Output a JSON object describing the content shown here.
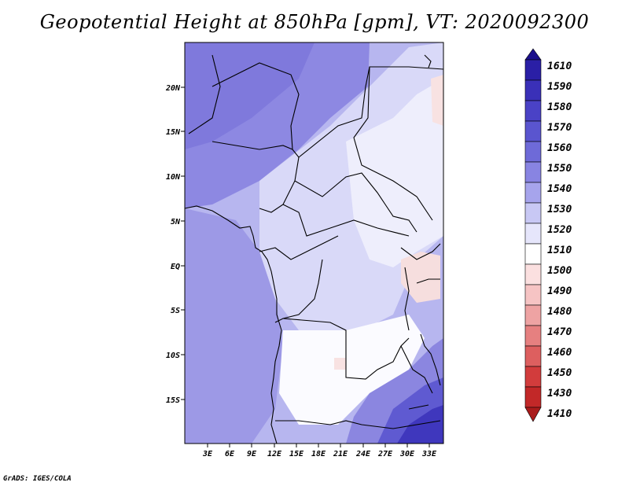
{
  "title": "Geopotential Height at 850hPa [gpm], VT: 2020092300",
  "credit": "GrADS: IGES/COLA",
  "lat_labels": [
    "20N",
    "15N",
    "10N",
    "5N",
    "EQ",
    "5S",
    "10S",
    "15S"
  ],
  "lon_labels": [
    "3E",
    "6E",
    "9E",
    "12E",
    "15E",
    "18E",
    "21E",
    "24E",
    "27E",
    "30E",
    "33E"
  ],
  "colorbar": {
    "labels": [
      "1610",
      "1590",
      "1580",
      "1570",
      "1560",
      "1550",
      "1540",
      "1530",
      "1520",
      "1510",
      "1500",
      "1490",
      "1480",
      "1470",
      "1460",
      "1450",
      "1430",
      "1410"
    ],
    "colors": [
      "#1b0f8c",
      "#2a1fa6",
      "#3a30b8",
      "#4a42c6",
      "#5a55cf",
      "#6e6ad8",
      "#8884e2",
      "#a6a4ec",
      "#c8c8f4",
      "#e6e6fb",
      "#ffffff",
      "#fbe0e0",
      "#f6c4c4",
      "#eea3a3",
      "#e68080",
      "#dd5f5f",
      "#d23c3c",
      "#c22828",
      "#a91b1b"
    ]
  }
}
